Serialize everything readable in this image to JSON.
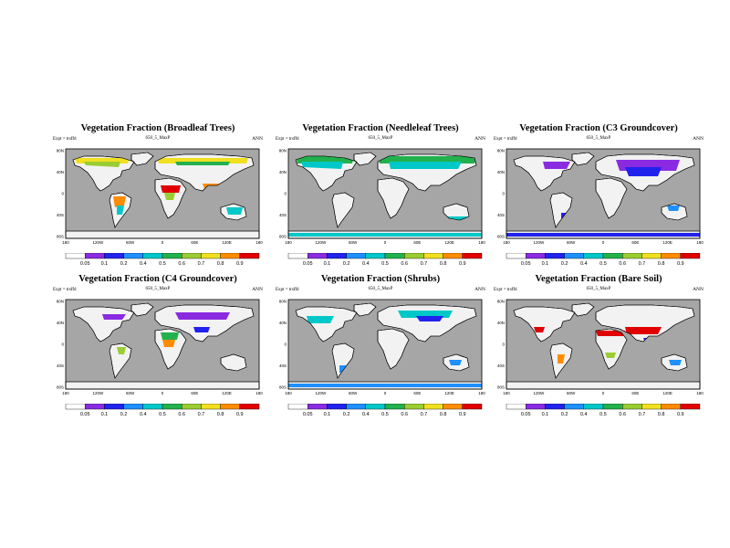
{
  "figure": {
    "panels": [
      {
        "title": "Vegetation Fraction (Broadleaf Trees)",
        "expt": "Expt = trsffd",
        "case": "650_5_MaxP",
        "season": "ANN",
        "style": "broadleaf"
      },
      {
        "title": "Vegetation Fraction (Needleleaf Trees)",
        "expt": "Expt = trsffd",
        "case": "650_5_MaxP",
        "season": "ANN",
        "style": "needleleaf"
      },
      {
        "title": "Vegetation Fraction (C3 Groundcover)",
        "expt": "Expt = trsffd",
        "case": "650_5_MaxP",
        "season": "ANN",
        "style": "c3"
      },
      {
        "title": "Vegetation Fraction (C4 Groundcover)",
        "expt": "Expt = trsffd",
        "case": "650_5_MaxP",
        "season": "ANN",
        "style": "c4"
      },
      {
        "title": "Vegetation Fraction (Shrubs)",
        "expt": "Expt = trsffd",
        "case": "650_5_MaxP",
        "season": "ANN",
        "style": "shrubs"
      },
      {
        "title": "Vegetation Fraction (Bare Soil)",
        "expt": "Expt = trsffd",
        "case": "650_5_MaxP",
        "season": "ANN",
        "style": "bare"
      }
    ],
    "lat_labels": [
      "80N",
      "40N",
      "0",
      "40S",
      "80S"
    ],
    "lon_labels": [
      "180",
      "120W",
      "60W",
      "0",
      "60E",
      "120E",
      "180"
    ],
    "colorbar": {
      "levels": [
        "0.05",
        "0.1",
        "0.2",
        "0.4",
        "0.5",
        "0.6",
        "0.7",
        "0.8",
        "0.9"
      ],
      "colors": [
        "#ffffff",
        "#8a2be2",
        "#2222ee",
        "#1e90ff",
        "#00c8c8",
        "#22b14c",
        "#9acd32",
        "#f0e020",
        "#ff8c00",
        "#e00000"
      ]
    },
    "colors": {
      "ocean": "#a6a6a6",
      "land_empty": "#f2f2f2",
      "coast": "#000000"
    }
  }
}
